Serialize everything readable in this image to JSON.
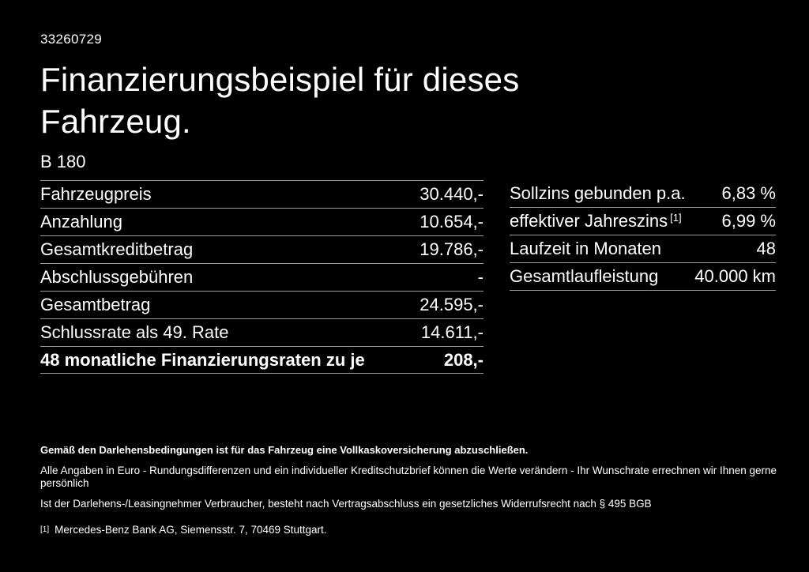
{
  "page": {
    "background_color": "#000000",
    "text_color": "#ffffff",
    "divider_color": "#9a9a9a"
  },
  "header": {
    "offer_number": "33260729",
    "title": "Finanzierungsbeispiel für dieses Fahrzeug.",
    "vehicle_model": "B 180"
  },
  "financing_table": {
    "rows": [
      {
        "label": "Fahrzeugpreis",
        "value": "30.440,-"
      },
      {
        "label": "Anzahlung",
        "value": "10.654,-"
      },
      {
        "label": "Gesamtkreditbetrag",
        "value": "19.786,-"
      },
      {
        "label": "Abschlussgebühren",
        "value": "-"
      },
      {
        "label": "Gesamtbetrag",
        "value": "24.595,-"
      },
      {
        "label": "Schlussrate als 49. Rate",
        "value": "14.611,-"
      },
      {
        "label": "48 monatliche Finanzierungsraten zu je",
        "value": "208,-"
      }
    ]
  },
  "conditions_table": {
    "rows": [
      {
        "label": "Sollzins gebunden p.a.",
        "value": "6,83 %"
      },
      {
        "label": "effektiver Jahreszins",
        "sup": "[1]",
        "value": "6,99 %"
      },
      {
        "label": "Laufzeit in Monaten",
        "value": "48"
      },
      {
        "label": "Gesamtlaufleistung",
        "value": "40.000 km"
      }
    ]
  },
  "notes": {
    "insurance_note": "Gemäß den Darlehensbedingungen ist für das Fahrzeug eine Vollkaskoversicherung abzuschließen.",
    "disclaimer_line1": "Alle Angaben in Euro - Rundungsdifferenzen und ein individueller Kreditschutzbrief können die Werte verändern - Ihr Wunschrate errechnen wir Ihnen gerne persönlich",
    "disclaimer_line2": "Ist der Darlehens-/Leasingnehmer Verbraucher, besteht nach Vertragsabschluss ein gesetzliches Widerrufsrecht nach § 495 BGB",
    "footnote_marker": "[1]",
    "footnote_text": "Mercedes-Benz Bank AG, Siemensstr. 7, 70469 Stuttgart."
  }
}
